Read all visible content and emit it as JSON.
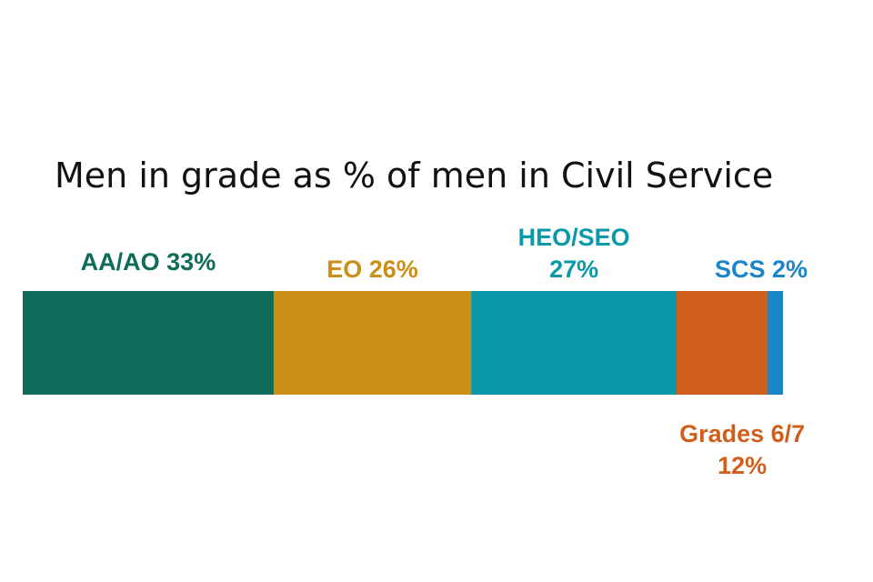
{
  "chart_data": {
    "type": "bar",
    "orientation": "horizontal-stacked",
    "title": "Men in grade as % of men in Civil Service",
    "unit": "%",
    "segments": [
      {
        "category": "AA/AO",
        "value": 33,
        "label_lines": [
          "AA/AO 33%"
        ],
        "color": "#0f6b5a",
        "label_position": "above"
      },
      {
        "category": "EO",
        "value": 26,
        "label_lines": [
          "EO 26%"
        ],
        "color": "#c98f17",
        "label_position": "above"
      },
      {
        "category": "HEO/SEO",
        "value": 27,
        "label_lines": [
          "HEO/SEO",
          "27%"
        ],
        "color": "#0a99a9",
        "label_position": "above"
      },
      {
        "category": "Grades 6/7",
        "value": 12,
        "label_lines": [
          "Grades 6/7",
          "12%"
        ],
        "color": "#d05f1b",
        "label_position": "below"
      },
      {
        "category": "SCS",
        "value": 2,
        "label_lines": [
          "SCS 2%"
        ],
        "color": "#1a86c8",
        "label_position": "above"
      }
    ],
    "legend": "none",
    "grid": false
  }
}
